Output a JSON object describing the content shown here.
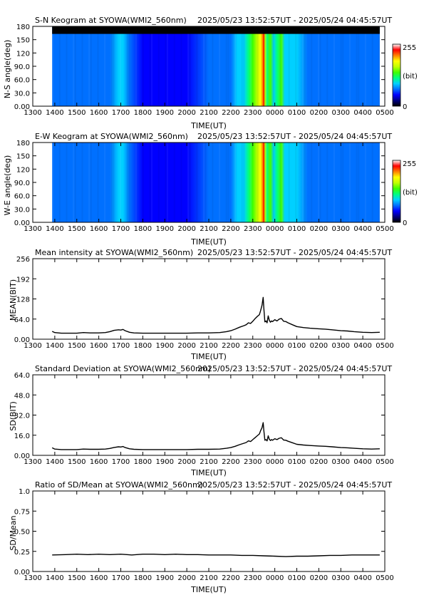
{
  "chart_data": [
    {
      "type": "heatmap",
      "title": "S-N Keogram at SYOWA(WMI2_560nm)",
      "time_range": "2025/05/23 13:52:57UT - 2025/05/24 04:45:57UT",
      "xlabel": "TIME(UT)",
      "ylabel": "N-S angle(deg)",
      "x_ticks": [
        "1300",
        "1400",
        "1500",
        "1600",
        "1700",
        "1800",
        "1900",
        "2000",
        "2100",
        "2200",
        "2300",
        "0000",
        "0100",
        "0200",
        "0300",
        "0400",
        "0500"
      ],
      "y_ticks": [
        "0.00",
        "30.0",
        "60.0",
        "90.0",
        "120",
        "150",
        "180"
      ],
      "ylim": [
        0,
        180
      ],
      "colorbar": {
        "min": "0",
        "max": "255",
        "unit": "(bit)"
      },
      "data_start_x": 13.88,
      "data_end_x": 28.77,
      "top_mask_deg": 163,
      "intensity_profile": [
        [
          13.88,
          0.25
        ],
        [
          14.5,
          0.24
        ],
        [
          15.0,
          0.25
        ],
        [
          15.4,
          0.26
        ],
        [
          15.9,
          0.25
        ],
        [
          16.5,
          0.26
        ],
        [
          16.9,
          0.33
        ],
        [
          17.1,
          0.32
        ],
        [
          17.4,
          0.24
        ],
        [
          18.0,
          0.22
        ],
        [
          19.0,
          0.22
        ],
        [
          20.0,
          0.22
        ],
        [
          21.0,
          0.23
        ],
        [
          21.6,
          0.25
        ],
        [
          22.0,
          0.27
        ],
        [
          22.3,
          0.33
        ],
        [
          22.6,
          0.38
        ],
        [
          22.8,
          0.42
        ],
        [
          23.0,
          0.5
        ],
        [
          23.2,
          0.6
        ],
        [
          23.35,
          0.7
        ],
        [
          23.45,
          0.85
        ],
        [
          23.5,
          0.95
        ],
        [
          23.55,
          0.6
        ],
        [
          23.65,
          0.45
        ],
        [
          23.8,
          0.5
        ],
        [
          23.95,
          0.4
        ],
        [
          24.1,
          0.45
        ],
        [
          24.3,
          0.5
        ],
        [
          24.45,
          0.4
        ],
        [
          24.7,
          0.35
        ],
        [
          25.0,
          0.33
        ],
        [
          25.5,
          0.3
        ],
        [
          26.0,
          0.3
        ],
        [
          26.5,
          0.28
        ],
        [
          27.0,
          0.26
        ],
        [
          27.5,
          0.25
        ],
        [
          28.0,
          0.25
        ],
        [
          28.77,
          0.24
        ]
      ]
    },
    {
      "type": "heatmap",
      "title": "E-W Keogram at SYOWA(WMI2_560nm)",
      "time_range": "2025/05/23 13:52:57UT - 2025/05/24 04:45:57UT",
      "xlabel": "TIME(UT)",
      "ylabel": "W-E angle(deg)",
      "x_ticks": [
        "1300",
        "1400",
        "1500",
        "1600",
        "1700",
        "1800",
        "1900",
        "2000",
        "2100",
        "2200",
        "2300",
        "0000",
        "0100",
        "0200",
        "0300",
        "0400",
        "0500"
      ],
      "y_ticks": [
        "0.00",
        "30.0",
        "60.0",
        "90.0",
        "120",
        "150",
        "180"
      ],
      "ylim": [
        0,
        180
      ],
      "colorbar": {
        "min": "0",
        "max": "255",
        "unit": "(bit)"
      },
      "data_start_x": 13.88,
      "data_end_x": 28.77,
      "intensity_profile": [
        [
          13.88,
          0.25
        ],
        [
          14.5,
          0.24
        ],
        [
          15.0,
          0.25
        ],
        [
          15.4,
          0.26
        ],
        [
          15.9,
          0.25
        ],
        [
          16.5,
          0.26
        ],
        [
          16.9,
          0.33
        ],
        [
          17.1,
          0.32
        ],
        [
          17.4,
          0.24
        ],
        [
          18.0,
          0.22
        ],
        [
          19.0,
          0.22
        ],
        [
          20.0,
          0.22
        ],
        [
          21.0,
          0.23
        ],
        [
          21.6,
          0.25
        ],
        [
          22.0,
          0.27
        ],
        [
          22.3,
          0.33
        ],
        [
          22.6,
          0.38
        ],
        [
          22.8,
          0.42
        ],
        [
          23.0,
          0.5
        ],
        [
          23.2,
          0.6
        ],
        [
          23.35,
          0.7
        ],
        [
          23.45,
          0.85
        ],
        [
          23.5,
          0.95
        ],
        [
          23.55,
          0.6
        ],
        [
          23.65,
          0.45
        ],
        [
          23.8,
          0.5
        ],
        [
          23.95,
          0.4
        ],
        [
          24.1,
          0.45
        ],
        [
          24.3,
          0.5
        ],
        [
          24.45,
          0.4
        ],
        [
          24.7,
          0.35
        ],
        [
          25.0,
          0.33
        ],
        [
          25.5,
          0.3
        ],
        [
          26.0,
          0.3
        ],
        [
          26.5,
          0.28
        ],
        [
          27.0,
          0.26
        ],
        [
          27.5,
          0.25
        ],
        [
          28.0,
          0.25
        ],
        [
          28.77,
          0.24
        ]
      ]
    },
    {
      "type": "line",
      "title": "Mean intensity at SYOWA(WMI2_560nm)",
      "time_range": "2025/05/23 13:52:57UT - 2025/05/24 04:45:57UT",
      "xlabel": "TIME(UT)",
      "ylabel": "MEAN(BIT)",
      "x_ticks": [
        "1300",
        "1400",
        "1500",
        "1600",
        "1700",
        "1800",
        "1900",
        "2000",
        "2100",
        "2200",
        "2300",
        "0000",
        "0100",
        "0200",
        "0300",
        "0400",
        "0500"
      ],
      "y_ticks": [
        "0.00",
        "64.0",
        "128",
        "192",
        "256"
      ],
      "ylim": [
        0,
        256
      ],
      "x": [
        13.88,
        14.0,
        14.3,
        14.6,
        15.0,
        15.3,
        15.6,
        16.0,
        16.3,
        16.5,
        16.7,
        16.9,
        17.0,
        17.1,
        17.2,
        17.4,
        17.6,
        18.0,
        19.0,
        20.0,
        20.5,
        21.0,
        21.5,
        21.8,
        22.0,
        22.2,
        22.4,
        22.6,
        22.7,
        22.8,
        22.9,
        23.0,
        23.1,
        23.2,
        23.3,
        23.35,
        23.42,
        23.47,
        23.5,
        23.55,
        23.6,
        23.65,
        23.7,
        23.75,
        23.8,
        23.85,
        23.9,
        24.0,
        24.1,
        24.2,
        24.3,
        24.4,
        24.5,
        24.6,
        24.8,
        25.0,
        25.3,
        25.6,
        26.0,
        26.3,
        26.6,
        27.0,
        27.3,
        27.6,
        28.0,
        28.4,
        28.77
      ],
      "y": [
        25,
        21,
        19,
        19,
        19,
        21,
        20,
        20,
        21,
        24,
        28,
        30,
        29,
        31,
        27,
        22,
        20,
        19,
        19,
        19,
        20,
        20,
        21,
        24,
        27,
        32,
        38,
        43,
        46,
        52,
        50,
        57,
        65,
        72,
        78,
        90,
        108,
        133,
        100,
        55,
        58,
        52,
        74,
        60,
        54,
        58,
        56,
        62,
        58,
        64,
        66,
        57,
        56,
        52,
        46,
        40,
        37,
        35,
        33,
        32,
        30,
        27,
        26,
        24,
        22,
        21,
        22
      ]
    },
    {
      "type": "line",
      "title": "Standard Deviation at SYOWA(WMI2_560nm)",
      "time_range": "2025/05/23 13:52:57UT - 2025/05/24 04:45:57UT",
      "xlabel": "TIME(UT)",
      "ylabel": "SD(BIT)",
      "x_ticks": [
        "1300",
        "1400",
        "1500",
        "1600",
        "1700",
        "1800",
        "1900",
        "2000",
        "2100",
        "2200",
        "2300",
        "0000",
        "0100",
        "0200",
        "0300",
        "0400",
        "0500"
      ],
      "y_ticks": [
        "0.00",
        "16.0",
        "32.0",
        "48.0",
        "64.0"
      ],
      "ylim": [
        0,
        64
      ],
      "x": [
        13.88,
        14.0,
        14.3,
        14.6,
        15.0,
        15.3,
        15.6,
        16.0,
        16.3,
        16.5,
        16.7,
        16.9,
        17.0,
        17.1,
        17.2,
        17.4,
        17.6,
        18.0,
        19.0,
        20.0,
        20.5,
        21.0,
        21.5,
        21.8,
        22.0,
        22.2,
        22.4,
        22.6,
        22.7,
        22.8,
        22.9,
        23.0,
        23.1,
        23.2,
        23.3,
        23.35,
        23.42,
        23.47,
        23.5,
        23.55,
        23.6,
        23.65,
        23.7,
        23.75,
        23.8,
        23.85,
        23.9,
        24.0,
        24.1,
        24.2,
        24.3,
        24.4,
        24.5,
        24.6,
        24.8,
        25.0,
        25.3,
        25.6,
        26.0,
        26.3,
        26.6,
        27.0,
        27.3,
        27.6,
        28.0,
        28.4,
        28.77
      ],
      "y": [
        6.0,
        5.0,
        4.6,
        4.6,
        4.6,
        5.0,
        4.8,
        4.8,
        5.0,
        5.5,
        6.3,
        6.8,
        6.6,
        7.0,
        6.2,
        5.2,
        4.8,
        4.6,
        4.6,
        4.6,
        4.8,
        4.8,
        5.0,
        5.6,
        6.2,
        7.2,
        8.5,
        9.6,
        10.2,
        11.5,
        11.0,
        12.5,
        14.0,
        15.5,
        17.0,
        19.5,
        22.0,
        26.0,
        20.0,
        12.0,
        12.5,
        11.5,
        15.5,
        12.8,
        11.8,
        12.5,
        12.0,
        13.2,
        12.5,
        13.6,
        14.0,
        12.2,
        12.0,
        11.2,
        10.0,
        8.8,
        8.2,
        7.8,
        7.4,
        7.2,
        6.8,
        6.2,
        6.0,
        5.6,
        5.2,
        5.0,
        5.2
      ]
    },
    {
      "type": "line",
      "title": "Ratio of SD/Mean at SYOWA(WMI2_560nm)",
      "time_range": "2025/05/23 13:52:57UT - 2025/05/24 04:45:57UT",
      "xlabel": "TIME(UT)",
      "ylabel": "SD/Mean",
      "x_ticks": [
        "1300",
        "1400",
        "1500",
        "1600",
        "1700",
        "1800",
        "1900",
        "2000",
        "2100",
        "2200",
        "2300",
        "0000",
        "0100",
        "0200",
        "0300",
        "0400",
        "0500"
      ],
      "y_ticks": [
        "0.00",
        "0.25",
        "0.50",
        "0.75",
        "1.0"
      ],
      "ylim": [
        0,
        1.0
      ],
      "x": [
        13.88,
        14.5,
        15.0,
        15.5,
        16.0,
        16.5,
        17.0,
        17.5,
        18.0,
        18.5,
        19.0,
        19.5,
        20.0,
        20.5,
        21.0,
        21.5,
        22.0,
        22.5,
        23.0,
        23.5,
        24.0,
        24.5,
        25.0,
        25.5,
        26.0,
        26.5,
        27.0,
        27.5,
        28.0,
        28.77
      ],
      "y": [
        0.205,
        0.21,
        0.215,
        0.21,
        0.215,
        0.21,
        0.215,
        0.205,
        0.215,
        0.215,
        0.21,
        0.215,
        0.21,
        0.21,
        0.205,
        0.205,
        0.205,
        0.2,
        0.2,
        0.195,
        0.19,
        0.185,
        0.19,
        0.19,
        0.195,
        0.2,
        0.2,
        0.205,
        0.205,
        0.205
      ]
    }
  ],
  "colors": {
    "line": "#000000",
    "keogram_mask": "#000000",
    "colormap": [
      "#000000",
      "#000080",
      "#0000ff",
      "#0070ff",
      "#00d0ff",
      "#00ff80",
      "#40ff00",
      "#c0ff00",
      "#ffff00",
      "#ff8000",
      "#ff0000",
      "#ffffff"
    ]
  }
}
